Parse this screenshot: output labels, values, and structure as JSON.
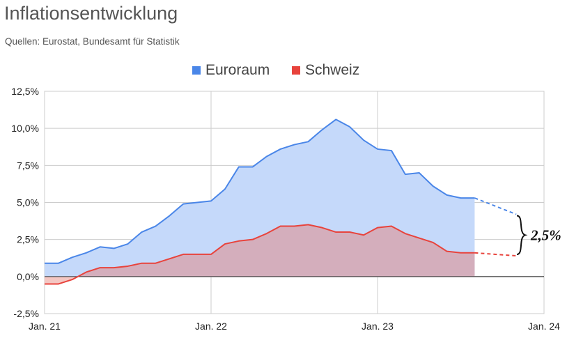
{
  "title": "Inflationsentwicklung",
  "subtitle": "Quellen: Eurostat, Bundesamt für Statistik",
  "chart_data": {
    "type": "area",
    "title": "Inflationsentwicklung",
    "subtitle": "Quellen: Eurostat, Bundesamt für Statistik",
    "xlabel": "",
    "ylabel": "",
    "x_ticks": [
      "Jan. 21",
      "Jan. 22",
      "Jan. 23",
      "Jan. 24"
    ],
    "y_ticks": [
      "-2,5%",
      "0,0%",
      "2,5%",
      "5,0%",
      "7,5%",
      "10,0%",
      "12,5%"
    ],
    "ylim": [
      -2.5,
      12.5
    ],
    "grid": true,
    "legend_position": "top",
    "x": [
      "2021-01",
      "2021-02",
      "2021-03",
      "2021-04",
      "2021-05",
      "2021-06",
      "2021-07",
      "2021-08",
      "2021-09",
      "2021-10",
      "2021-11",
      "2021-12",
      "2022-01",
      "2022-02",
      "2022-03",
      "2022-04",
      "2022-05",
      "2022-06",
      "2022-07",
      "2022-08",
      "2022-09",
      "2022-10",
      "2022-11",
      "2022-12",
      "2023-01",
      "2023-02",
      "2023-03",
      "2023-04",
      "2023-05",
      "2023-06",
      "2023-07",
      "2023-08"
    ],
    "series": [
      {
        "name": "Euroraum",
        "color": "#4a86e8",
        "fill": "#c5d9fa",
        "values": [
          0.9,
          0.9,
          1.3,
          1.6,
          2.0,
          1.9,
          2.2,
          3.0,
          3.4,
          4.1,
          4.9,
          5.0,
          5.1,
          5.9,
          7.4,
          7.4,
          8.1,
          8.6,
          8.9,
          9.1,
          9.9,
          10.6,
          10.1,
          9.2,
          8.6,
          8.5,
          6.9,
          7.0,
          6.1,
          5.5,
          5.3,
          5.3
        ],
        "projection": {
          "x": [
            "2023-08",
            "2023-11"
          ],
          "values": [
            5.3,
            4.2
          ]
        }
      },
      {
        "name": "Schweiz",
        "color": "#e8433c",
        "fill": "#d4aebc",
        "values": [
          -0.5,
          -0.5,
          -0.2,
          0.3,
          0.6,
          0.6,
          0.7,
          0.9,
          0.9,
          1.2,
          1.5,
          1.5,
          1.5,
          2.2,
          2.4,
          2.5,
          2.9,
          3.4,
          3.4,
          3.5,
          3.3,
          3.0,
          3.0,
          2.8,
          3.3,
          3.4,
          2.9,
          2.6,
          2.3,
          1.7,
          1.6,
          1.6
        ],
        "projection": {
          "x": [
            "2023-08",
            "2023-11"
          ],
          "values": [
            1.6,
            1.4
          ]
        }
      }
    ],
    "annotations": [
      {
        "text": "2,5%",
        "x": "2023-11",
        "y": 2.8
      }
    ]
  }
}
